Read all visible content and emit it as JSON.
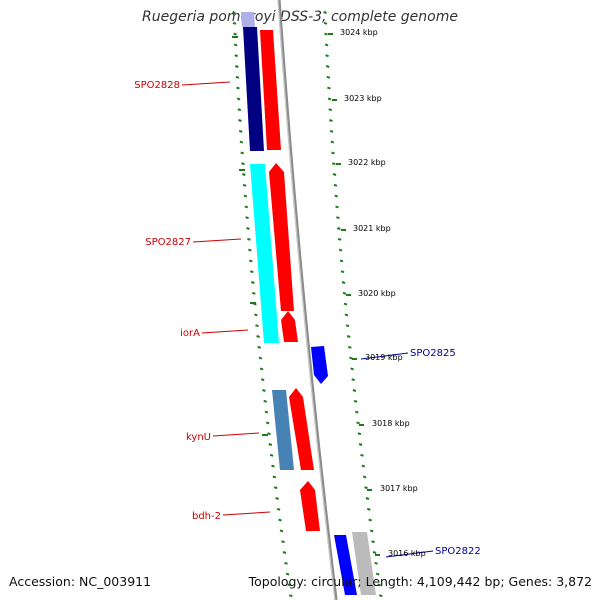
{
  "title": "Ruegeria pomeroyi DSS-3, complete genome",
  "footer": {
    "accession": "Accession: NC_003911",
    "summary": "Topology: circular; Length: 4,109,442 bp; Genes: 3,872"
  },
  "colors": {
    "backbone": "#8c8c8c",
    "tick": "#1f7a1f",
    "gene_label_forward": "#cc0000",
    "gene_label_reverse": "#000099",
    "forward_cds": "#ff0000",
    "reverse_gene_1": "#000080",
    "reverse_gene_2": "#00ffff",
    "reverse_gene_3": "#4682b4",
    "reverse_gene_4": "#0000ff",
    "gray_gene": "#bbbbbb",
    "lavender_gene": "#b0b0e8"
  },
  "scale_labels": [
    "3024 kbp",
    "3023 kbp",
    "3022 kbp",
    "3021 kbp",
    "3020 kbp",
    "3019 kbp",
    "3018 kbp",
    "3017 kbp",
    "3016 kbp"
  ],
  "gene_labels": [
    {
      "text": "SPO2828",
      "side": "left"
    },
    {
      "text": "SPO2827",
      "side": "left"
    },
    {
      "text": "iorA",
      "side": "left"
    },
    {
      "text": "kynU",
      "side": "left"
    },
    {
      "text": "bdh-2",
      "side": "left"
    },
    {
      "text": "SPO2825",
      "side": "right"
    },
    {
      "text": "SPO2822",
      "side": "right"
    }
  ]
}
